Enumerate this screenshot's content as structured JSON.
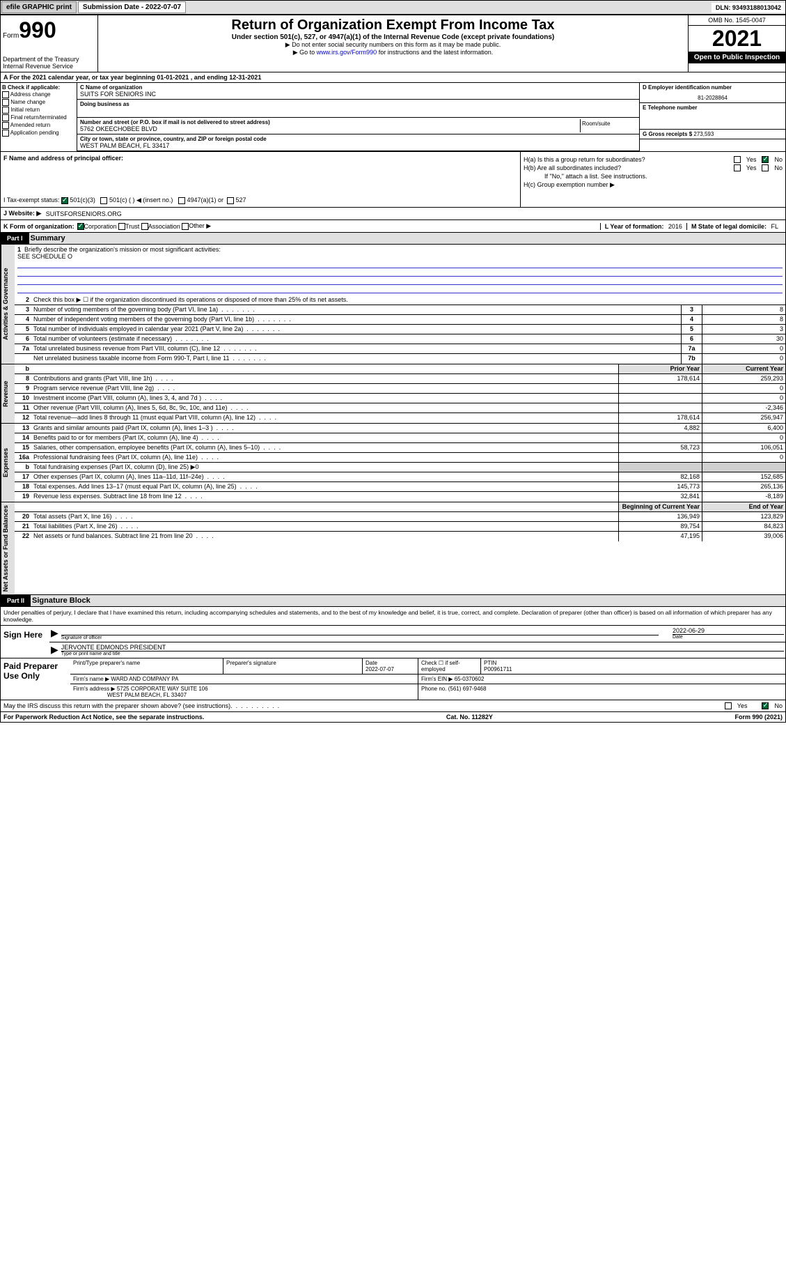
{
  "topbar": {
    "efile": "efile GRAPHIC print",
    "sub_label": "Submission Date - 2022-07-07",
    "dln": "DLN: 93493188013042"
  },
  "header": {
    "form_label": "Form",
    "form_num": "990",
    "dept": "Department of the Treasury",
    "irs": "Internal Revenue Service",
    "title": "Return of Organization Exempt From Income Tax",
    "sub1": "Under section 501(c), 527, or 4947(a)(1) of the Internal Revenue Code (except private foundations)",
    "sub2": "▶ Do not enter social security numbers on this form as it may be made public.",
    "sub3_pre": "▶ Go to ",
    "sub3_link": "www.irs.gov/Form990",
    "sub3_post": " for instructions and the latest information.",
    "omb": "OMB No. 1545-0047",
    "year": "2021",
    "open": "Open to Public Inspection"
  },
  "a_line": "A For the 2021 calendar year, or tax year beginning 01-01-2021    , and ending 12-31-2021",
  "b": {
    "label": "B Check if applicable:",
    "items": [
      "Address change",
      "Name change",
      "Initial return",
      "Final return/terminated",
      "Amended return",
      "Application pending"
    ]
  },
  "c": {
    "name_label": "C Name of organization",
    "name": "SUITS FOR SENIORS INC",
    "dba_label": "Doing business as",
    "addr_label": "Number and street (or P.O. box if mail is not delivered to street address)",
    "room_label": "Room/suite",
    "addr": "5762 OKEECHOBEE BLVD",
    "city_label": "City or town, state or province, country, and ZIP or foreign postal code",
    "city": "WEST PALM BEACH, FL  33417"
  },
  "d": {
    "label": "D Employer identification number",
    "ein": "81-2028864"
  },
  "e": {
    "label": "E Telephone number"
  },
  "g": {
    "label": "G Gross receipts $",
    "val": "273,593"
  },
  "f": {
    "label": "F  Name and address of principal officer:"
  },
  "h": {
    "a": "H(a)  Is this a group return for subordinates?",
    "b": "H(b)  Are all subordinates included?",
    "b_note": "If \"No,\" attach a list. See instructions.",
    "c": "H(c)  Group exemption number ▶",
    "yes": "Yes",
    "no": "No"
  },
  "i": {
    "label": "I    Tax-exempt status:",
    "opts": [
      "501(c)(3)",
      "501(c) (  ) ◀ (insert no.)",
      "4947(a)(1) or",
      "527"
    ]
  },
  "j": {
    "label": "J    Website: ▶",
    "val": "SUITSFORSENIORS.ORG"
  },
  "k": {
    "label": "K Form of organization:",
    "opts": [
      "Corporation",
      "Trust",
      "Association",
      "Other ▶"
    ]
  },
  "l": {
    "label": "L Year of formation:",
    "val": "2016"
  },
  "m": {
    "label": "M State of legal domicile:",
    "val": "FL"
  },
  "part1": {
    "hdr": "Part I",
    "title": "Summary"
  },
  "summary": {
    "line1_label": "Briefly describe the organization's mission or most significant activities:",
    "line1_val": "SEE SCHEDULE O",
    "line2": "Check this box ▶ ☐  if the organization discontinued its operations or disposed of more than 25% of its net assets.",
    "rows_single": [
      {
        "n": "3",
        "d": "Number of voting members of the governing body (Part VI, line 1a)",
        "box": "3",
        "v": "8"
      },
      {
        "n": "4",
        "d": "Number of independent voting members of the governing body (Part VI, line 1b)",
        "box": "4",
        "v": "8"
      },
      {
        "n": "5",
        "d": "Total number of individuals employed in calendar year 2021 (Part V, line 2a)",
        "box": "5",
        "v": "3"
      },
      {
        "n": "6",
        "d": "Total number of volunteers (estimate if necessary)",
        "box": "6",
        "v": "30"
      },
      {
        "n": "7a",
        "d": "Total unrelated business revenue from Part VIII, column (C), line 12",
        "box": "7a",
        "v": "0"
      },
      {
        "n": "",
        "d": "Net unrelated business taxable income from Form 990-T, Part I, line 11",
        "box": "7b",
        "v": "0"
      }
    ],
    "col_hdr_b": "b",
    "col_hdr_prior": "Prior Year",
    "col_hdr_curr": "Current Year",
    "revenue": [
      {
        "n": "8",
        "d": "Contributions and grants (Part VIII, line 1h)",
        "p": "178,614",
        "c": "259,293"
      },
      {
        "n": "9",
        "d": "Program service revenue (Part VIII, line 2g)",
        "p": "",
        "c": "0"
      },
      {
        "n": "10",
        "d": "Investment income (Part VIII, column (A), lines 3, 4, and 7d )",
        "p": "",
        "c": "0"
      },
      {
        "n": "11",
        "d": "Other revenue (Part VIII, column (A), lines 5, 6d, 8c, 9c, 10c, and 11e)",
        "p": "",
        "c": "-2,346"
      },
      {
        "n": "12",
        "d": "Total revenue—add lines 8 through 11 (must equal Part VIII, column (A), line 12)",
        "p": "178,614",
        "c": "256,947"
      }
    ],
    "expenses": [
      {
        "n": "13",
        "d": "Grants and similar amounts paid (Part IX, column (A), lines 1–3 )",
        "p": "4,882",
        "c": "6,400"
      },
      {
        "n": "14",
        "d": "Benefits paid to or for members (Part IX, column (A), line 4)",
        "p": "",
        "c": "0"
      },
      {
        "n": "15",
        "d": "Salaries, other compensation, employee benefits (Part IX, column (A), lines 5–10)",
        "p": "58,723",
        "c": "106,051"
      },
      {
        "n": "16a",
        "d": "Professional fundraising fees (Part IX, column (A), line 11e)",
        "p": "",
        "c": "0"
      },
      {
        "n": "b",
        "d": "Total fundraising expenses (Part IX, column (D), line 25) ▶0",
        "grey": true
      },
      {
        "n": "17",
        "d": "Other expenses (Part IX, column (A), lines 11a–11d, 11f–24e)",
        "p": "82,168",
        "c": "152,685"
      },
      {
        "n": "18",
        "d": "Total expenses. Add lines 13–17 (must equal Part IX, column (A), line 25)",
        "p": "145,773",
        "c": "265,136"
      },
      {
        "n": "19",
        "d": "Revenue less expenses. Subtract line 18 from line 12",
        "p": "32,841",
        "c": "-8,189"
      }
    ],
    "na_hdr_b": "Beginning of Current Year",
    "na_hdr_e": "End of Year",
    "net_assets": [
      {
        "n": "20",
        "d": "Total assets (Part X, line 16)",
        "p": "136,949",
        "c": "123,829"
      },
      {
        "n": "21",
        "d": "Total liabilities (Part X, line 26)",
        "p": "89,754",
        "c": "84,823"
      },
      {
        "n": "22",
        "d": "Net assets or fund balances. Subtract line 21 from line 20",
        "p": "47,195",
        "c": "39,006"
      }
    ],
    "side_ag": "Activities & Governance",
    "side_rev": "Revenue",
    "side_exp": "Expenses",
    "side_na": "Net Assets or Fund Balances"
  },
  "part2": {
    "hdr": "Part II",
    "title": "Signature Block"
  },
  "sig": {
    "decl": "Under penalties of perjury, I declare that I have examined this return, including accompanying schedules and statements, and to the best of my knowledge and belief, it is true, correct, and complete. Declaration of preparer (other than officer) is based on all information of which preparer has any knowledge.",
    "sign_here": "Sign Here",
    "date": "2022-06-29",
    "sig_label": "Signature of officer",
    "date_label": "Date",
    "name": "JERVONTE EDMONDS  PRESIDENT",
    "name_label": "Type or print name and title"
  },
  "prep": {
    "title": "Paid Preparer Use Only",
    "h1": "Print/Type preparer's name",
    "h2": "Preparer's signature",
    "h3": "Date",
    "date": "2022-07-07",
    "h4_pre": "Check ☐ if self-employed",
    "h5": "PTIN",
    "ptin": "P00961711",
    "firm_name_l": "Firm's name    ▶",
    "firm_name": "WARD AND COMPANY PA",
    "firm_ein_l": "Firm's EIN ▶",
    "firm_ein": "65-0370602",
    "firm_addr_l": "Firm's address ▶",
    "firm_addr1": "5725 CORPORATE WAY SUITE 106",
    "firm_addr2": "WEST PALM BEACH, FL  33407",
    "phone_l": "Phone no.",
    "phone": "(561) 697-9468"
  },
  "discuss": {
    "q": "May the IRS discuss this return with the preparer shown above? (see instructions)",
    "yes": "Yes",
    "no": "No"
  },
  "footer": {
    "l": "For Paperwork Reduction Act Notice, see the separate instructions.",
    "m": "Cat. No. 11282Y",
    "r": "Form 990 (2021)"
  }
}
